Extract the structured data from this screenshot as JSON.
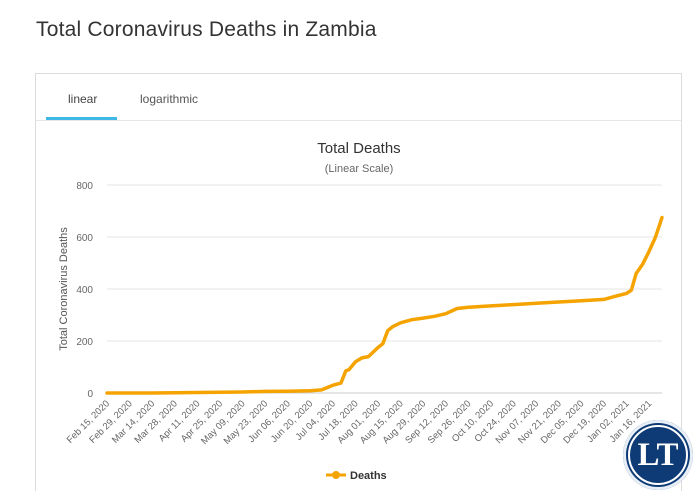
{
  "page": {
    "title": "Total Coronavirus Deaths in Zambia"
  },
  "tabs": [
    {
      "label": "linear",
      "active": true
    },
    {
      "label": "logarithmic",
      "active": false
    }
  ],
  "logo": {
    "text": "LT"
  },
  "colors": {
    "series": "#f5a300",
    "tab_active": "#3fb8e6",
    "grid": "#e6e6e6",
    "text": "#666666"
  },
  "chart_data": {
    "type": "line",
    "title": "Total Deaths",
    "subtitle": "(Linear Scale)",
    "xlabel": "",
    "ylabel": "Total Coronavirus Deaths",
    "ylim": [
      0,
      800
    ],
    "yticks": [
      0,
      200,
      400,
      600,
      800
    ],
    "grid": true,
    "legend_position": "bottom",
    "x_tick_labels": [
      "Feb 15, 2020",
      "Feb 29, 2020",
      "Mar 14, 2020",
      "Mar 28, 2020",
      "Apr 11, 2020",
      "Apr 25, 2020",
      "May 09, 2020",
      "May 23, 2020",
      "Jun 06, 2020",
      "Jun 20, 2020",
      "Jul 04, 2020",
      "Jul 18, 2020",
      "Aug 01, 2020",
      "Aug 15, 2020",
      "Aug 29, 2020",
      "Sep 12, 2020",
      "Sep 26, 2020",
      "Oct 10, 2020",
      "Oct 24, 2020",
      "Nov 07, 2020",
      "Nov 21, 2020",
      "Dec 05, 2020",
      "Dec 19, 2020",
      "Jan 02, 2021",
      "Jan 16, 2021"
    ],
    "series": [
      {
        "name": "Deaths",
        "x": [
          "Feb 15, 2020",
          "Mar 14, 2020",
          "Apr 11, 2020",
          "May 09, 2020",
          "May 23, 2020",
          "Jun 06, 2020",
          "Jun 20, 2020",
          "Jun 27, 2020",
          "Jul 04, 2020",
          "Jul 09, 2020",
          "Jul 12, 2020",
          "Jul 14, 2020",
          "Jul 18, 2020",
          "Jul 22, 2020",
          "Jul 26, 2020",
          "Aug 01, 2020",
          "Aug 04, 2020",
          "Aug 07, 2020",
          "Aug 10, 2020",
          "Aug 15, 2020",
          "Aug 22, 2020",
          "Aug 29, 2020",
          "Sep 05, 2020",
          "Sep 12, 2020",
          "Sep 19, 2020",
          "Sep 26, 2020",
          "Oct 10, 2020",
          "Oct 24, 2020",
          "Nov 07, 2020",
          "Nov 21, 2020",
          "Dec 05, 2020",
          "Dec 19, 2020",
          "Dec 26, 2020",
          "Jan 02, 2021",
          "Jan 05, 2021",
          "Jan 08, 2021",
          "Jan 12, 2021",
          "Jan 16, 2021",
          "Jan 20, 2021",
          "Jan 24, 2021"
        ],
        "y": [
          0,
          0,
          2,
          4,
          6,
          7,
          9,
          12,
          30,
          38,
          85,
          90,
          120,
          135,
          140,
          175,
          190,
          240,
          255,
          270,
          282,
          288,
          295,
          305,
          325,
          330,
          335,
          340,
          345,
          350,
          355,
          360,
          372,
          383,
          395,
          460,
          495,
          545,
          600,
          675
        ]
      }
    ]
  }
}
